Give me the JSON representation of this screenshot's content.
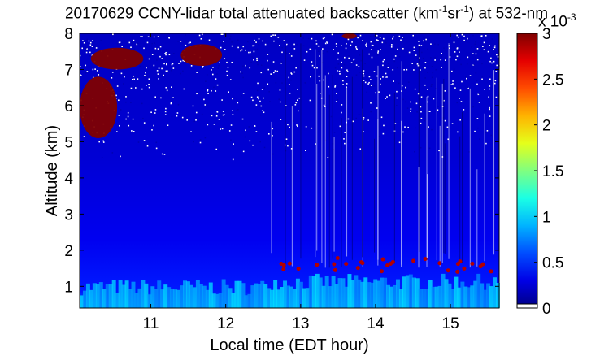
{
  "chart_data": {
    "type": "heatmap",
    "title": {
      "pre": "20170629 CCNY-lidar total attenuated backscatter (km",
      "sup1": "-1",
      "mid": "sr",
      "sup2": "-1",
      "post": ") at 532-nm"
    },
    "xlabel": "Local time (EDT hour)",
    "ylabel": "Altitude (km)",
    "xlim": [
      10.05,
      15.65
    ],
    "ylim": [
      0.4,
      8
    ],
    "xticks": [
      11,
      12,
      13,
      14,
      15
    ],
    "yticks": [
      1,
      2,
      3,
      4,
      5,
      6,
      7,
      8
    ],
    "colorbar": {
      "min": 0,
      "max": 3,
      "ticks": [
        0,
        0.5,
        1,
        1.5,
        2,
        2.5,
        3
      ],
      "exponent_base": "x 10",
      "exponent_power": "-3",
      "colormap": "jet"
    },
    "features": [
      {
        "name": "cloud-7.5km-left",
        "time": [
          10.2,
          10.9
        ],
        "alt": [
          7.0,
          7.6
        ],
        "value": 3
      },
      {
        "name": "cloud-7.3km-mid",
        "time": [
          11.4,
          11.95
        ],
        "alt": [
          7.1,
          7.7
        ],
        "value": 3
      },
      {
        "name": "cloud-8km",
        "time": [
          13.55,
          13.75
        ],
        "alt": [
          7.85,
          8.0
        ],
        "value": 3
      },
      {
        "name": "cloud-6km",
        "time": [
          10.05,
          10.55
        ],
        "alt": [
          5.1,
          6.8
        ],
        "value": 3
      },
      {
        "name": "boundary-layer-top",
        "time": [
          12.7,
          15.65
        ],
        "alt": [
          1.4,
          1.8
        ],
        "value": 2.5
      }
    ]
  }
}
